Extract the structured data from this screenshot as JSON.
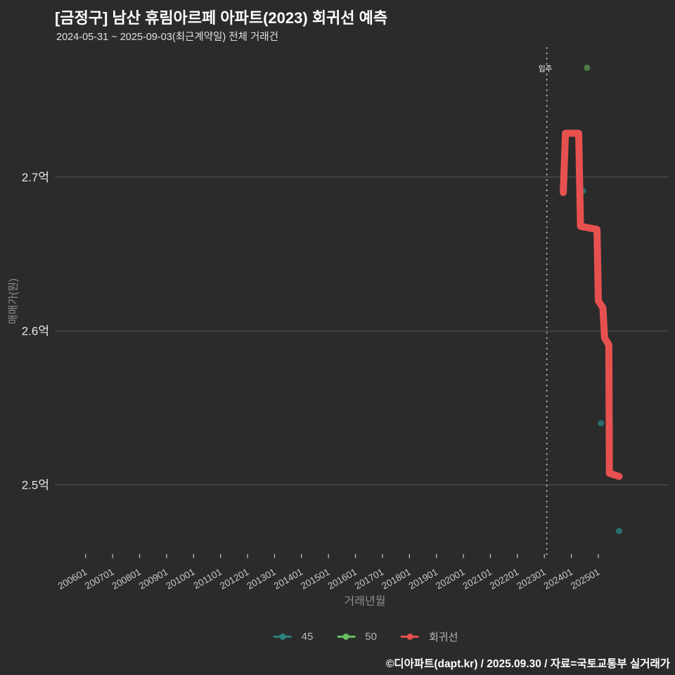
{
  "title": "[금정구] 남산 휴림아르페 아파트(2023) 회귀선 예측",
  "subtitle": "2024-05-31 ~ 2025-09-03(최근계약일) 전체 거래건",
  "footer": "©디아파트(dapt.kr) / 2025.09.30 / 자료=국토교통부 실거래가",
  "colors": {
    "background": "#2b2b2b",
    "gridline": "#545454",
    "tick_mark": "#c0c0c0",
    "x_tick_text": "#c8c8c8",
    "y_tick_text": "#e6e6e6",
    "axis_title_text": "#8f8f8f",
    "legend_text": "#b8b8b8",
    "annotation_line": "#dcdcdc",
    "annotation_text": "#ffffff",
    "title_text": "#ffffff",
    "footer_text": "#ffffff"
  },
  "chart_data": {
    "type": "line",
    "title": "[금정구] 남산 휴림아르페 아파트(2023) 회귀선 예측",
    "subtitle": "2024-05-31 ~ 2025-09-03(최근계약일) 전체 거래건",
    "xlabel": "거래년월",
    "ylabel": "매매가(원)",
    "x_ticks": [
      "200601",
      "200701",
      "200801",
      "200901",
      "201001",
      "201101",
      "201201",
      "201301",
      "201401",
      "201501",
      "201601",
      "201701",
      "201801",
      "201901",
      "202001",
      "202101",
      "202201",
      "202301",
      "202401",
      "202501"
    ],
    "y_ticks": [
      {
        "label": "2.7억",
        "value": 2.7
      },
      {
        "label": "2.6억",
        "value": 2.6
      },
      {
        "label": "2.5억",
        "value": 2.5
      }
    ],
    "xlim": [
      2004.86,
      2027.58
    ],
    "ylim": [
      2.455,
      2.784
    ],
    "grid": "horizontal-only",
    "legend_position": "bottom-center",
    "annotation": {
      "label": "입주",
      "x": 2023.09
    },
    "series": [
      {
        "name": "45",
        "type": "scatter",
        "color": "#2d8080",
        "alpha": 0.8,
        "points": [
          [
            2024.43,
            2.691
          ],
          [
            2025.1,
            2.54
          ],
          [
            2025.77,
            2.47
          ]
        ]
      },
      {
        "name": "50",
        "type": "scatter",
        "color": "#6abf5f",
        "alpha": 0.55,
        "points": [
          [
            2024.58,
            2.771
          ]
        ]
      },
      {
        "name": "회귀선",
        "type": "line",
        "color": "#e65150",
        "alpha": 1,
        "points": [
          [
            2023.7,
            2.69
          ],
          [
            2023.78,
            2.7285
          ],
          [
            2024.27,
            2.7285
          ],
          [
            2024.34,
            2.668
          ],
          [
            2024.95,
            2.666
          ],
          [
            2025.0,
            2.6195
          ],
          [
            2025.17,
            2.615
          ],
          [
            2025.23,
            2.5955
          ],
          [
            2025.39,
            2.591
          ],
          [
            2025.41,
            2.5075
          ],
          [
            2025.77,
            2.5055
          ]
        ]
      }
    ]
  }
}
